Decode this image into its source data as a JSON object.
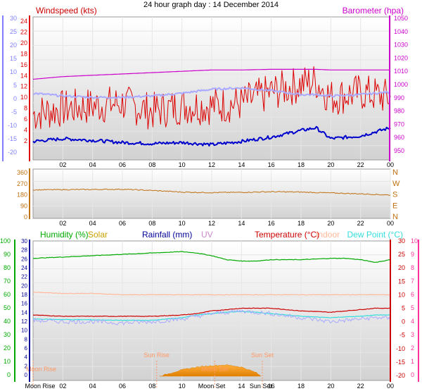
{
  "page_title": "24 hour graph day : 14 December 2014",
  "colors": {
    "wind_avg": "#dd0000",
    "wind_gust": "#0000cc",
    "temperature_c": "#a9a9ff",
    "barometer": "#cc00cc",
    "wind_dir": "#c07010",
    "humidity": "#00aa00",
    "solar": "#c8a000",
    "rainfall": "#000099",
    "uv": "#cc88cc",
    "temperature": "#cc0000",
    "indoor": "#ffb89a",
    "dew_point": "#33dddd",
    "right_pink_axis": "#ff3399"
  },
  "chart_data": [
    {
      "type": "line",
      "panel": "wind",
      "labels": {
        "windspeed": "Windspeed (kts)",
        "barometer": "Barometer (hpa)"
      },
      "x_ticks": [
        "02",
        "04",
        "06",
        "08",
        "10",
        "12",
        "14",
        "16",
        "18",
        "20",
        "22",
        "00"
      ],
      "y_left_outer_ticks": [
        "30",
        "25",
        "20",
        "15",
        "10",
        "5",
        "0",
        "-5",
        "-10",
        "-15",
        "-20"
      ],
      "y_left_inner_ticks": [
        "24",
        "22",
        "20",
        "18",
        "16",
        "14",
        "12",
        "10",
        "8",
        "6",
        "4",
        "2"
      ],
      "y_right_ticks": [
        "1050",
        "1040",
        "1030",
        "1020",
        "1010",
        "1000",
        "990",
        "980",
        "970",
        "960",
        "950"
      ],
      "ylim_wind": [
        0,
        25
      ],
      "ylim_temp": [
        -20,
        30
      ],
      "ylim_baro": [
        950,
        1050
      ],
      "hours": [
        0,
        2,
        4,
        6,
        8,
        10,
        12,
        14,
        16,
        18,
        19,
        20,
        22,
        24
      ],
      "series": [
        {
          "key": "wind_avg",
          "axis": "wind",
          "values": [
            8,
            9,
            9.5,
            10,
            8.5,
            9.5,
            9.5,
            10,
            12,
            13.5,
            14,
            11,
            12,
            11
          ]
        },
        {
          "key": "wind_gust",
          "axis": "wind",
          "values": [
            3,
            3.5,
            3.2,
            2.8,
            2.6,
            2.8,
            2.4,
            3,
            3.8,
            5,
            5.5,
            3.5,
            4,
            5.5
          ]
        },
        {
          "key": "temperature_c",
          "axis": "temp",
          "values": [
            2,
            1,
            0.5,
            0.5,
            1,
            2,
            3.5,
            4,
            3,
            1.5,
            1.5,
            1,
            1.5,
            2.5
          ]
        },
        {
          "key": "barometer",
          "axis": "baro",
          "values": [
            1004,
            1006,
            1007,
            1008,
            1009,
            1010,
            1011,
            1011,
            1011.5,
            1011.5,
            1011.5,
            1011,
            1011,
            1011
          ]
        }
      ]
    },
    {
      "type": "line",
      "panel": "wind_direction",
      "x_ticks": [
        "02",
        "04",
        "06",
        "08",
        "10",
        "12",
        "14",
        "16",
        "18",
        "20",
        "22",
        "00"
      ],
      "y_left_ticks": [
        "360",
        "270",
        "180",
        "90",
        "0"
      ],
      "y_right_ticks": [
        "N",
        "W",
        "S",
        "E",
        "N"
      ],
      "ylim": [
        0,
        360
      ],
      "hours": [
        0,
        2,
        4,
        6,
        8,
        10,
        12,
        14,
        16,
        18,
        20,
        22,
        24
      ],
      "series": [
        {
          "key": "wind_dir",
          "values": [
            220,
            222,
            223,
            225,
            215,
            202,
            198,
            200,
            205,
            202,
            195,
            188,
            178
          ]
        }
      ]
    },
    {
      "type": "line",
      "panel": "temperature_humidity",
      "labels": {
        "humidity": "Humidity (%)",
        "solar": "Solar",
        "rainfall": "Rainfall (mm)",
        "uv": "UV",
        "temperature": "Temperature (°C)",
        "indoor": "Indoor",
        "dew_point": "Dew Point (°C)"
      },
      "x_ticks": [
        "Moon Rise",
        "02",
        "04",
        "06",
        "08",
        "10",
        "Moon Set",
        "14",
        "Sun Set",
        "16",
        "18",
        "20",
        "22",
        "00"
      ],
      "y_humidity_ticks": [
        "100",
        "90",
        "80",
        "70",
        "60",
        "50",
        "40",
        "30",
        "20",
        "10",
        "0"
      ],
      "y_rain_ticks": [
        "30",
        "28",
        "26",
        "24",
        "22",
        "20",
        "18",
        "16",
        "14",
        "12",
        "10",
        "8",
        "6",
        "4",
        "2",
        "0"
      ],
      "y_temp_ticks": [
        "30",
        "25",
        "20",
        "15",
        "10",
        "5",
        "0",
        "-5",
        "-10",
        "-15",
        "-20"
      ],
      "y_uv_ticks": [
        "10",
        "9",
        "8",
        "7",
        "6",
        "5",
        "4",
        "3",
        "2",
        "1",
        "0"
      ],
      "ylim_humidity": [
        0,
        100
      ],
      "ylim_temp": [
        -20,
        30
      ],
      "annotations": [
        {
          "label": "Moon Rise",
          "hour": 0
        },
        {
          "label": "Sun Rise",
          "hour": 8.3
        },
        {
          "label": "Moon Set",
          "hour": 12.2
        },
        {
          "label": "Sun Set",
          "hour": 15.4
        }
      ],
      "hours": [
        0,
        2,
        4,
        6,
        8,
        10,
        11,
        12,
        13,
        14,
        15,
        16,
        18,
        20,
        21,
        22,
        23,
        23.5,
        24
      ],
      "series": [
        {
          "key": "humidity",
          "axis": "humidity",
          "values": [
            87,
            88,
            89,
            90,
            91,
            92,
            91,
            89,
            86,
            85,
            85,
            86,
            86,
            87,
            87,
            86,
            84,
            85,
            86
          ]
        },
        {
          "key": "temperature",
          "axis": "temp",
          "values": [
            2.5,
            2,
            2,
            2,
            2,
            2.5,
            3,
            4,
            4.5,
            5,
            5,
            5,
            4,
            3.5,
            4,
            4.5,
            5,
            5,
            5
          ]
        },
        {
          "key": "indoor",
          "axis": "temp",
          "values": [
            11,
            10.5,
            10.5,
            10,
            10,
            10,
            10,
            10,
            10,
            10,
            10,
            10,
            10,
            10,
            10,
            10,
            10,
            10,
            10
          ]
        },
        {
          "key": "dew_point",
          "axis": "temp",
          "values": [
            1,
            0.8,
            0.7,
            0.5,
            0.5,
            1.5,
            2.5,
            3,
            3.5,
            3.8,
            3.5,
            3,
            2,
            1.5,
            1.8,
            2,
            2.5,
            2.5,
            2.5
          ]
        },
        {
          "key": "temperature_c",
          "axis": "temp",
          "values": [
            0.5,
            0,
            0,
            -0.5,
            0,
            1,
            2,
            3,
            3.5,
            4,
            3.5,
            3,
            1.5,
            0,
            0.5,
            1,
            1.5,
            1.5,
            1
          ]
        }
      ],
      "solar_hours": [
        8.5,
        9,
        10,
        11,
        12,
        13,
        14,
        15,
        15.3
      ],
      "solar_values": [
        0,
        0.3,
        0.9,
        1.3,
        1.5,
        1.6,
        1.3,
        0.5,
        0
      ]
    }
  ]
}
